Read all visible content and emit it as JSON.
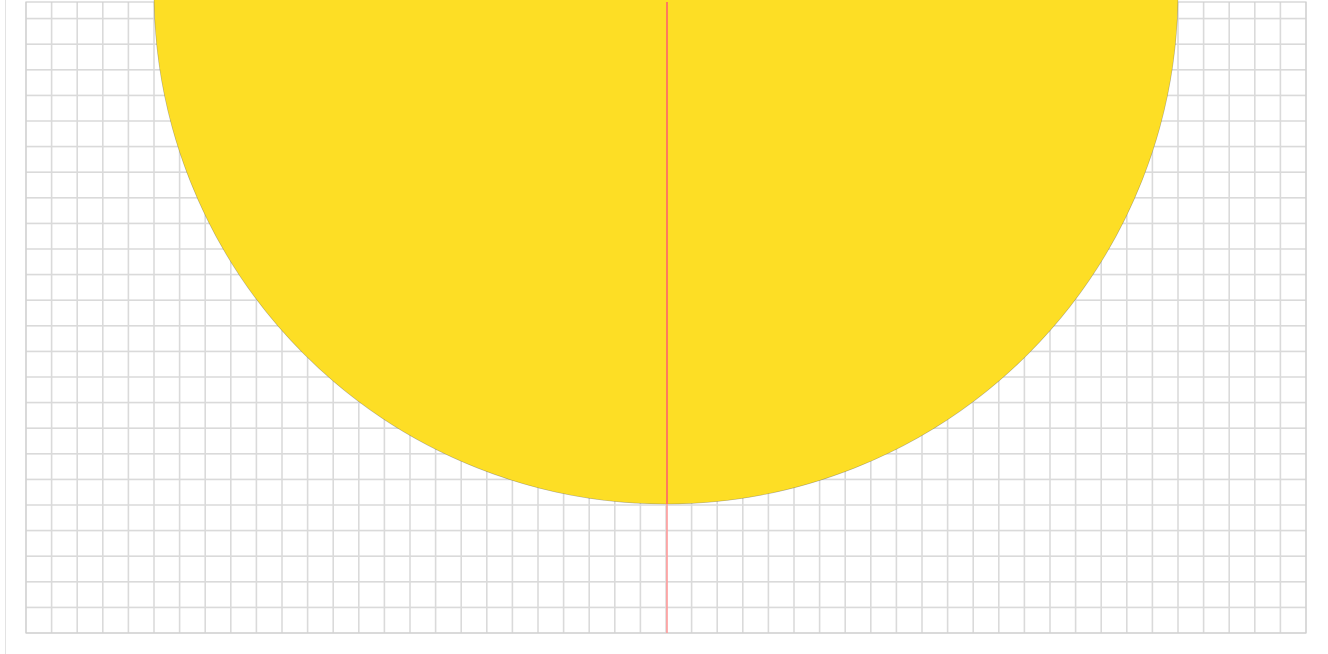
{
  "colors": {
    "background": "#ffffff",
    "grid_line": "#dadada",
    "grid_border": "#cfcfcf",
    "semicircle_fill": "#fdde25",
    "semicircle_edge": "#2a2a2a",
    "axis_line": "#ff7a5c",
    "axis_line_lower": "#ff9a9a"
  },
  "shapes": {
    "semicircle": "filled-semicircle",
    "axis": "vertical-symmetry-line",
    "grid": "square-grid"
  }
}
